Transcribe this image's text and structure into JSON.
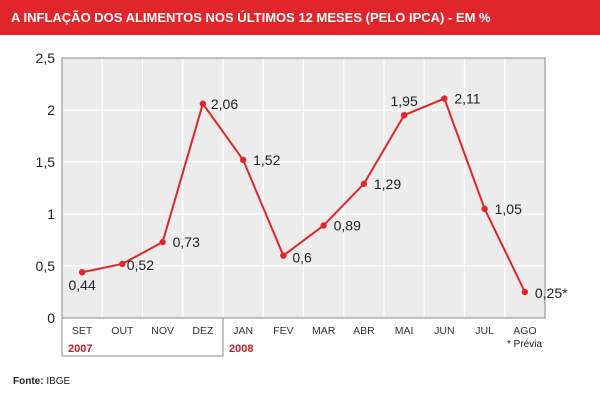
{
  "header": {
    "title": "A INFLAÇÃO DOS ALIMENTOS NOS ÚLTIMOS 12 MESES (PELO IPCA) - EM %"
  },
  "footer": {
    "label": "Fonte:",
    "value": "IBGE"
  },
  "colors": {
    "header_bg": "#e0262b",
    "line": "#e0262b",
    "plot_bg": "#ececec",
    "grid": "#ffffff",
    "year": "#c41e24"
  },
  "chart_data": {
    "type": "line",
    "categories": [
      "SET",
      "OUT",
      "NOV",
      "DEZ",
      "JAN",
      "FEV",
      "MAR",
      "ABR",
      "MAI",
      "JUN",
      "JUL",
      "AGO"
    ],
    "series": [
      {
        "values": [
          0.44,
          0.52,
          0.73,
          2.06,
          1.52,
          0.6,
          0.89,
          1.29,
          1.95,
          2.11,
          1.05,
          0.25
        ]
      }
    ],
    "data_labels": [
      "0,44",
      "0,52",
      "0,73",
      "2,06",
      "1,52",
      "0,6",
      "0,89",
      "1,29",
      "1,95",
      "2,11",
      "1,05",
      "0,25*"
    ],
    "ylim": [
      0,
      2.5
    ],
    "yticks": [
      0,
      0.5,
      1,
      1.5,
      2,
      2.5
    ],
    "ytick_labels": [
      "0",
      "0,5",
      "1",
      "1,5",
      "2",
      "2,5"
    ],
    "year_groups": [
      {
        "label": "2007",
        "categories": [
          "SET",
          "OUT",
          "NOV",
          "DEZ"
        ]
      },
      {
        "label": "2008",
        "categories": [
          "JAN",
          "FEV",
          "MAR",
          "ABR",
          "MAI",
          "JUN",
          "JUL",
          "AGO"
        ]
      }
    ],
    "note": "* Prévia",
    "grid": true,
    "title": "",
    "xlabel": "",
    "ylabel": ""
  }
}
